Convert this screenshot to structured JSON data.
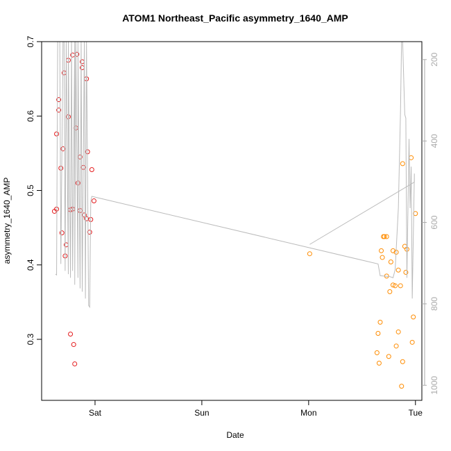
{
  "chart_data": {
    "type": "scatter",
    "title": "ATOM1 Northeast_Pacific asymmetry_1640_AMP",
    "xlabel": "Date",
    "ylabel": "asymmetry_1640_AMP",
    "xlim": [
      -0.5,
      3.06
    ],
    "xticks": [
      {
        "value": 0,
        "label": "Sat"
      },
      {
        "value": 1,
        "label": "Sun"
      },
      {
        "value": 2,
        "label": "Mon"
      },
      {
        "value": 3,
        "label": "Tue"
      }
    ],
    "ylim": [
      0.218,
      0.7
    ],
    "yticks": [
      0.3,
      0.4,
      0.5,
      0.6,
      0.7
    ],
    "y2lim": [
      1037,
      156
    ],
    "y2ticks": [
      200,
      400,
      600,
      800,
      1000
    ],
    "y2color": "#aaaaaa",
    "grid": false,
    "series": [
      {
        "color": "#e41a1c",
        "x": [
          -0.38,
          -0.36,
          -0.36,
          -0.34,
          -0.34,
          -0.32,
          -0.31,
          -0.3,
          -0.29,
          -0.28,
          -0.27,
          -0.25,
          -0.25,
          -0.23,
          -0.21,
          -0.23,
          -0.21,
          -0.2,
          -0.19,
          -0.18,
          -0.17,
          -0.16,
          -0.14,
          -0.14,
          -0.12,
          -0.12,
          -0.11,
          -0.1,
          -0.08,
          -0.08,
          -0.07,
          -0.05,
          -0.04,
          -0.03,
          -0.01
        ],
        "values": [
          0.472,
          0.475,
          0.576,
          0.622,
          0.608,
          0.53,
          0.443,
          0.556,
          0.658,
          0.412,
          0.427,
          0.599,
          0.675,
          0.474,
          0.475,
          0.307,
          0.682,
          0.293,
          0.267,
          0.584,
          0.683,
          0.51,
          0.473,
          0.545,
          0.665,
          0.673,
          0.531,
          0.467,
          0.462,
          0.65,
          0.552,
          0.444,
          0.461,
          0.528,
          0.486
        ]
      },
      {
        "color": "#ff8c00",
        "x": [
          2.01,
          2.64,
          2.65,
          2.66,
          2.67,
          2.68,
          2.69,
          2.7,
          2.71,
          2.73,
          2.73,
          2.75,
          2.76,
          2.77,
          2.79,
          2.79,
          2.81,
          2.82,
          2.82,
          2.84,
          2.84,
          2.86,
          2.87,
          2.88,
          2.88,
          2.9,
          2.91,
          2.92,
          2.96,
          2.97,
          2.98,
          3.0
        ],
        "values": [
          0.415,
          0.282,
          0.308,
          0.268,
          0.323,
          0.419,
          0.41,
          0.438,
          0.438,
          0.438,
          0.385,
          0.277,
          0.364,
          0.404,
          0.419,
          0.373,
          0.372,
          0.417,
          0.291,
          0.393,
          0.31,
          0.372,
          0.237,
          0.27,
          0.536,
          0.425,
          0.39,
          0.421,
          0.544,
          0.296,
          0.33,
          0.469
        ]
      },
      {
        "color": "#bbbbbb",
        "axis": "y2",
        "mode": "line",
        "x": [
          -0.37,
          -0.36,
          -0.35,
          -0.33,
          -0.32,
          -0.3,
          -0.29,
          -0.28,
          -0.27,
          -0.25,
          -0.25,
          -0.23,
          -0.22,
          -0.21,
          -0.19,
          -0.19,
          -0.18,
          -0.16,
          -0.16,
          -0.14,
          -0.13,
          -0.12,
          -0.1,
          -0.09,
          -0.08,
          -0.06,
          -0.05,
          -0.04,
          -0.03,
          2.65,
          2.67,
          2.76,
          2.79,
          2.81,
          2.84,
          2.86,
          2.87,
          2.88,
          2.9,
          2.91,
          2.92,
          2.94,
          2.95,
          2.96,
          2.97,
          2.99,
          2.99,
          2.01
        ],
        "values": [
          727,
          729,
          156,
          156,
          702,
          156,
          156,
          719,
          156,
          727,
          156,
          736,
          156,
          719,
          156,
          753,
          156,
          736,
          156,
          762,
          156,
          770,
          156,
          787,
          156,
          804,
          808,
          548,
          536,
          702,
          731,
          733,
          736,
          716,
          565,
          327,
          156,
          156,
          335,
          344,
          736,
          395,
          565,
          463,
          787,
          480,
          501,
          654
        ]
      }
    ]
  }
}
